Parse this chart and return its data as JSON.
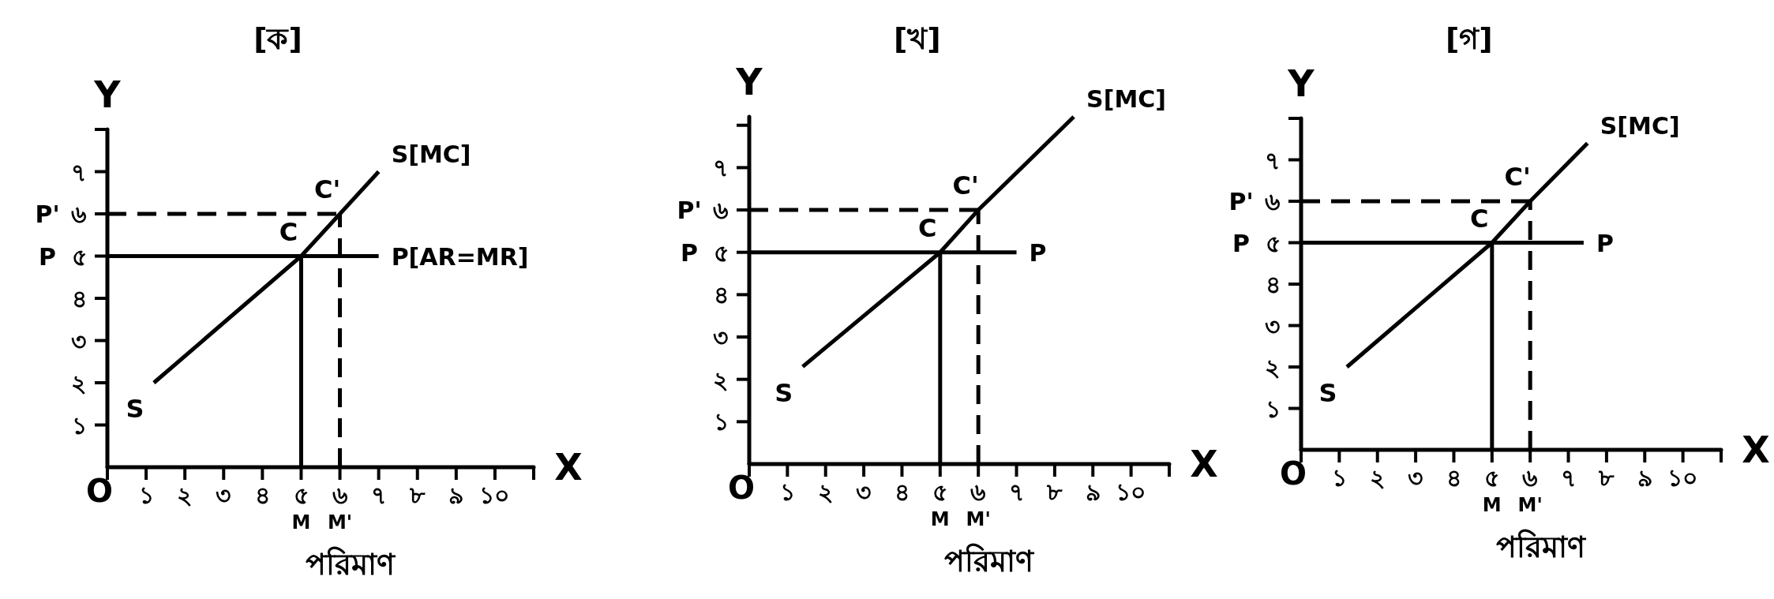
{
  "chart_data": [
    {
      "type": "line",
      "title": "[ক]",
      "xlabel": "পরিমাণ",
      "ylabel": "Y",
      "xlim": [
        0,
        11
      ],
      "ylim": [
        0,
        8
      ],
      "xticks": [
        {
          "value": 0,
          "label": "O"
        },
        {
          "value": 1,
          "label": "১"
        },
        {
          "value": 2,
          "label": "২"
        },
        {
          "value": 3,
          "label": "৩"
        },
        {
          "value": 4,
          "label": "৪"
        },
        {
          "value": 5,
          "label": "৫"
        },
        {
          "value": 6,
          "label": "৬"
        },
        {
          "value": 7,
          "label": "৭"
        },
        {
          "value": 8,
          "label": "৮"
        },
        {
          "value": 9,
          "label": "৯"
        },
        {
          "value": 10,
          "label": "১০"
        },
        {
          "value": 11,
          "label": null
        }
      ],
      "yticks": [
        {
          "value": 1,
          "label": "১"
        },
        {
          "value": 2,
          "label": "২"
        },
        {
          "value": 3,
          "label": "৩"
        },
        {
          "value": 4,
          "label": "৪"
        },
        {
          "value": 5,
          "label": "৫"
        },
        {
          "value": 6,
          "label": "৬"
        },
        {
          "value": 7,
          "label": "৭"
        },
        {
          "value": 8,
          "label": null
        }
      ],
      "series": [
        {
          "name": "S[MC]",
          "color": "#000000",
          "x": [
            1.2,
            5,
            6,
            7
          ],
          "values": [
            2,
            5,
            6,
            7
          ]
        },
        {
          "name": "P[AR=MR]",
          "color": "#000000",
          "x": [
            0,
            7
          ],
          "values": [
            5,
            5
          ]
        },
        {
          "color": "#000000",
          "x": [
            0,
            6
          ],
          "values": [
            6,
            6
          ],
          "line_style": "dashed"
        },
        {
          "color": "#000000",
          "x": [
            5,
            5
          ],
          "values": [
            0,
            5
          ]
        },
        {
          "color": "#000000",
          "x": [
            6,
            6
          ],
          "values": [
            0,
            6
          ],
          "line_style": "dashed"
        }
      ],
      "annotations": [
        {
          "text": "S",
          "x": 1.2,
          "y": 2
        },
        {
          "text": "C",
          "x": 5,
          "y": 5
        },
        {
          "text": "C'",
          "x": 6,
          "y": 6
        },
        {
          "text": "P",
          "x": 0,
          "y": 5
        },
        {
          "text": "P'",
          "x": 0,
          "y": 6
        },
        {
          "text": "M",
          "x": 5,
          "y": 0
        },
        {
          "text": "M'",
          "x": 6,
          "y": 0
        },
        "X"
      ]
    },
    {
      "type": "line",
      "title": "[খ]",
      "xlabel": "পরিমাণ",
      "ylabel": "Y",
      "xlim": [
        0,
        11
      ],
      "ylim": [
        0,
        8.2
      ],
      "xticks": [
        {
          "value": 0,
          "label": "O"
        },
        {
          "value": 1,
          "label": "১"
        },
        {
          "value": 2,
          "label": "২"
        },
        {
          "value": 3,
          "label": "৩"
        },
        {
          "value": 4,
          "label": "৪"
        },
        {
          "value": 5,
          "label": "৫"
        },
        {
          "value": 6,
          "label": "৬"
        },
        {
          "value": 7,
          "label": "৭"
        },
        {
          "value": 8,
          "label": "৮"
        },
        {
          "value": 9,
          "label": "৯"
        },
        {
          "value": 10,
          "label": "১০"
        },
        {
          "value": 11,
          "label": null
        }
      ],
      "yticks": [
        {
          "value": 1,
          "label": "১"
        },
        {
          "value": 2,
          "label": "২"
        },
        {
          "value": 3,
          "label": "৩"
        },
        {
          "value": 4,
          "label": "৪"
        },
        {
          "value": 5,
          "label": "৫"
        },
        {
          "value": 6,
          "label": "৬"
        },
        {
          "value": 7,
          "label": "৭"
        },
        {
          "value": 8,
          "label": null
        }
      ],
      "series": [
        {
          "name": "S[MC]",
          "color": "#000000",
          "x": [
            1.4,
            5,
            6,
            8.5
          ],
          "values": [
            2.3,
            5,
            6,
            8.2
          ]
        },
        {
          "name": "P",
          "color": "#000000",
          "x": [
            0,
            7
          ],
          "values": [
            5,
            5
          ]
        },
        {
          "color": "#000000",
          "x": [
            0,
            6
          ],
          "values": [
            6,
            6
          ],
          "line_style": "dashed"
        },
        {
          "color": "#000000",
          "x": [
            5,
            5
          ],
          "values": [
            0,
            5
          ]
        },
        {
          "color": "#000000",
          "x": [
            6,
            6
          ],
          "values": [
            0,
            6
          ],
          "line_style": "dashed"
        }
      ],
      "annotations": [
        {
          "text": "S",
          "x": 1.4,
          "y": 2.3
        },
        {
          "text": "C",
          "x": 5,
          "y": 5
        },
        {
          "text": "C'",
          "x": 6,
          "y": 6
        },
        {
          "text": "P",
          "x": 0,
          "y": 5
        },
        {
          "text": "P'",
          "x": 0,
          "y": 6
        },
        {
          "text": "M",
          "x": 5,
          "y": 0
        },
        {
          "text": "M'",
          "x": 6,
          "y": 0
        },
        "X"
      ]
    },
    {
      "type": "line",
      "title": "[গ]",
      "xlabel": "পরিমাণ",
      "ylabel": "Y",
      "xlim": [
        0,
        11
      ],
      "ylim": [
        0,
        8
      ],
      "xticks": [
        {
          "value": 0,
          "label": "O"
        },
        {
          "value": 1,
          "label": "১"
        },
        {
          "value": 2,
          "label": "২"
        },
        {
          "value": 3,
          "label": "৩"
        },
        {
          "value": 4,
          "label": "৪"
        },
        {
          "value": 5,
          "label": "৫"
        },
        {
          "value": 6,
          "label": "৬"
        },
        {
          "value": 7,
          "label": "৭"
        },
        {
          "value": 8,
          "label": "৮"
        },
        {
          "value": 9,
          "label": "৯"
        },
        {
          "value": 10,
          "label": "১০"
        },
        {
          "value": 11,
          "label": null
        }
      ],
      "yticks": [
        {
          "value": 1,
          "label": "১"
        },
        {
          "value": 2,
          "label": "২"
        },
        {
          "value": 3,
          "label": "৩"
        },
        {
          "value": 4,
          "label": "৪"
        },
        {
          "value": 5,
          "label": "৫"
        },
        {
          "value": 6,
          "label": "৬"
        },
        {
          "value": 7,
          "label": "৭"
        },
        {
          "value": 8,
          "label": null
        }
      ],
      "series": [
        {
          "name": "S[MC]",
          "color": "#000000",
          "x": [
            1.2,
            5,
            6,
            7.5
          ],
          "values": [
            2,
            5,
            6,
            7.4
          ]
        },
        {
          "name": "P",
          "color": "#000000",
          "x": [
            0,
            7.4
          ],
          "values": [
            5,
            5
          ]
        },
        {
          "color": "#000000",
          "x": [
            0,
            6
          ],
          "values": [
            6,
            6
          ],
          "line_style": "dashed"
        },
        {
          "color": "#000000",
          "x": [
            5,
            5
          ],
          "values": [
            0,
            5
          ]
        },
        {
          "color": "#000000",
          "x": [
            6,
            6
          ],
          "values": [
            0,
            6
          ],
          "line_style": "dashed"
        }
      ],
      "annotations": [
        {
          "text": "S",
          "x": 1.2,
          "y": 2
        },
        {
          "text": "C",
          "x": 5,
          "y": 5
        },
        {
          "text": "C'",
          "x": 6,
          "y": 6
        },
        {
          "text": "P",
          "x": 0,
          "y": 5
        },
        {
          "text": "P'",
          "x": 0,
          "y": 6
        },
        {
          "text": "M",
          "x": 5,
          "y": 0
        },
        {
          "text": "M'",
          "x": 6,
          "y": 0
        },
        "X"
      ]
    }
  ]
}
